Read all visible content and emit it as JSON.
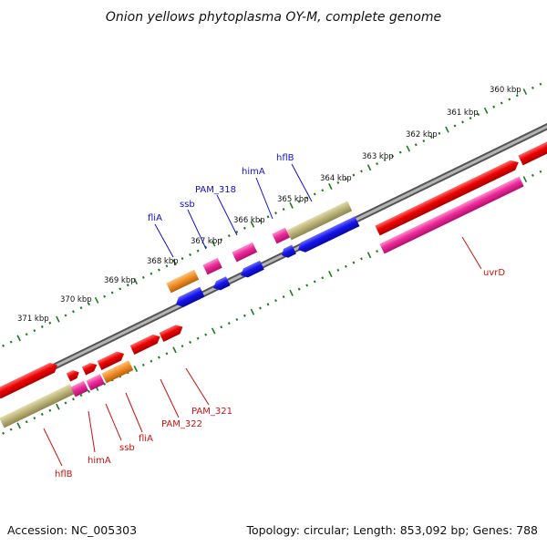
{
  "title": "Onion yellows phytoplasma OY-M, complete genome",
  "footer": {
    "accession": "Accession: NC_005303",
    "summary": "Topology: circular; Length: 853,092 bp; Genes: 788"
  },
  "colors": {
    "backbone": "#8c8c8c",
    "ticks": "#1e7a1e",
    "red": "#ee0000",
    "pink": "#ee2a9a",
    "orange": "#f0902a",
    "blue": "#1414ee",
    "khaki": "#bdb57a",
    "label_top": "#1010cc",
    "label_bottom": "#cc1010"
  },
  "kbp_labels": [
    "360 kbp",
    "361 kbp",
    "362 kbp",
    "363 kbp",
    "364 kbp",
    "365 kbp",
    "366 kbp",
    "367 kbp",
    "368 kbp",
    "369 kbp",
    "370 kbp",
    "371 kbp"
  ],
  "top_labels": [
    "hflB",
    "himA",
    "PAM_318",
    "ssb",
    "fliA"
  ],
  "bottom_labels": [
    "uvrD",
    "PAM_321",
    "PAM_322",
    "fliA",
    "ssb",
    "himA",
    "hflB"
  ]
}
